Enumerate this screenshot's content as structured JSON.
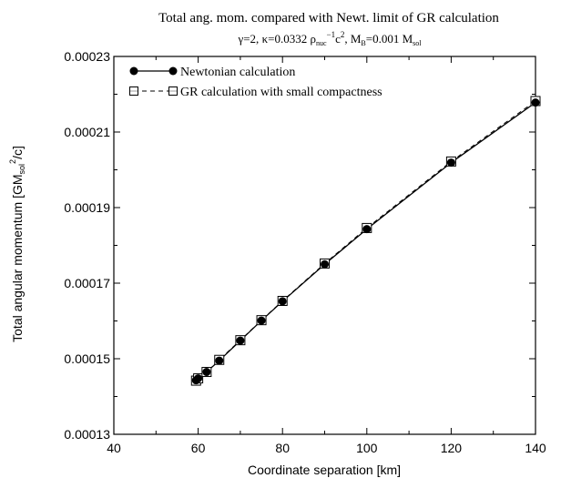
{
  "chart_data": {
    "type": "line",
    "title": "Total ang. mom. compared with Newt. limit of GR calculation",
    "subtitle": {
      "gamma": "γ=2, ",
      "kappa_prefix": "κ=0.0332 ρ",
      "rho_sub": "nuc",
      "rho_sup": "−1",
      "c": "c",
      "c_sup": "2",
      "mb_prefix": ", M",
      "mb_sub": "B",
      "mb_value": "=0.001 M",
      "msol_sub": "sol"
    },
    "xlabel": "Coordinate separation [km]",
    "ylabel": {
      "prefix": "Total angular momentum [GM",
      "sub": "sol",
      "sup": "2",
      "suffix": "/c]"
    },
    "xlim": [
      40,
      140
    ],
    "ylim": [
      0.00013,
      0.00023
    ],
    "x_ticks": [
      40,
      60,
      80,
      100,
      120,
      140
    ],
    "x_tick_labels": [
      "40",
      "60",
      "80",
      "100",
      "120",
      "140"
    ],
    "y_ticks": [
      0.00013,
      0.00015,
      0.00017,
      0.00019,
      0.00021,
      0.00023
    ],
    "y_tick_labels": [
      "0.00013",
      "0.00015",
      "0.00017",
      "0.00019",
      "0.00021",
      "0.00023"
    ],
    "grid": false,
    "legend_position": "top-left",
    "series": [
      {
        "name": "Newtonian calculation",
        "line_style": "solid",
        "marker": "filled-circle",
        "color": "#000000",
        "x": [
          59.5,
          60,
          62,
          65,
          70,
          75,
          80,
          90,
          100,
          120,
          140
        ],
        "y": [
          0.0001443,
          0.0001448,
          0.0001465,
          0.0001495,
          0.0001548,
          0.0001601,
          0.0001652,
          0.000175,
          0.0001843,
          0.0002019,
          0.0002178
        ]
      },
      {
        "name": "GR calculation with small compactness",
        "line_style": "dashed",
        "marker": "open-square-dotted",
        "color": "#000000",
        "x": [
          59.5,
          60,
          62,
          65,
          70,
          75,
          80,
          90,
          100,
          120,
          140
        ],
        "y": [
          0.0001442,
          0.0001448,
          0.0001465,
          0.0001497,
          0.0001549,
          0.0001602,
          0.0001653,
          0.0001752,
          0.0001846,
          0.0002022,
          0.0002182
        ]
      }
    ]
  }
}
